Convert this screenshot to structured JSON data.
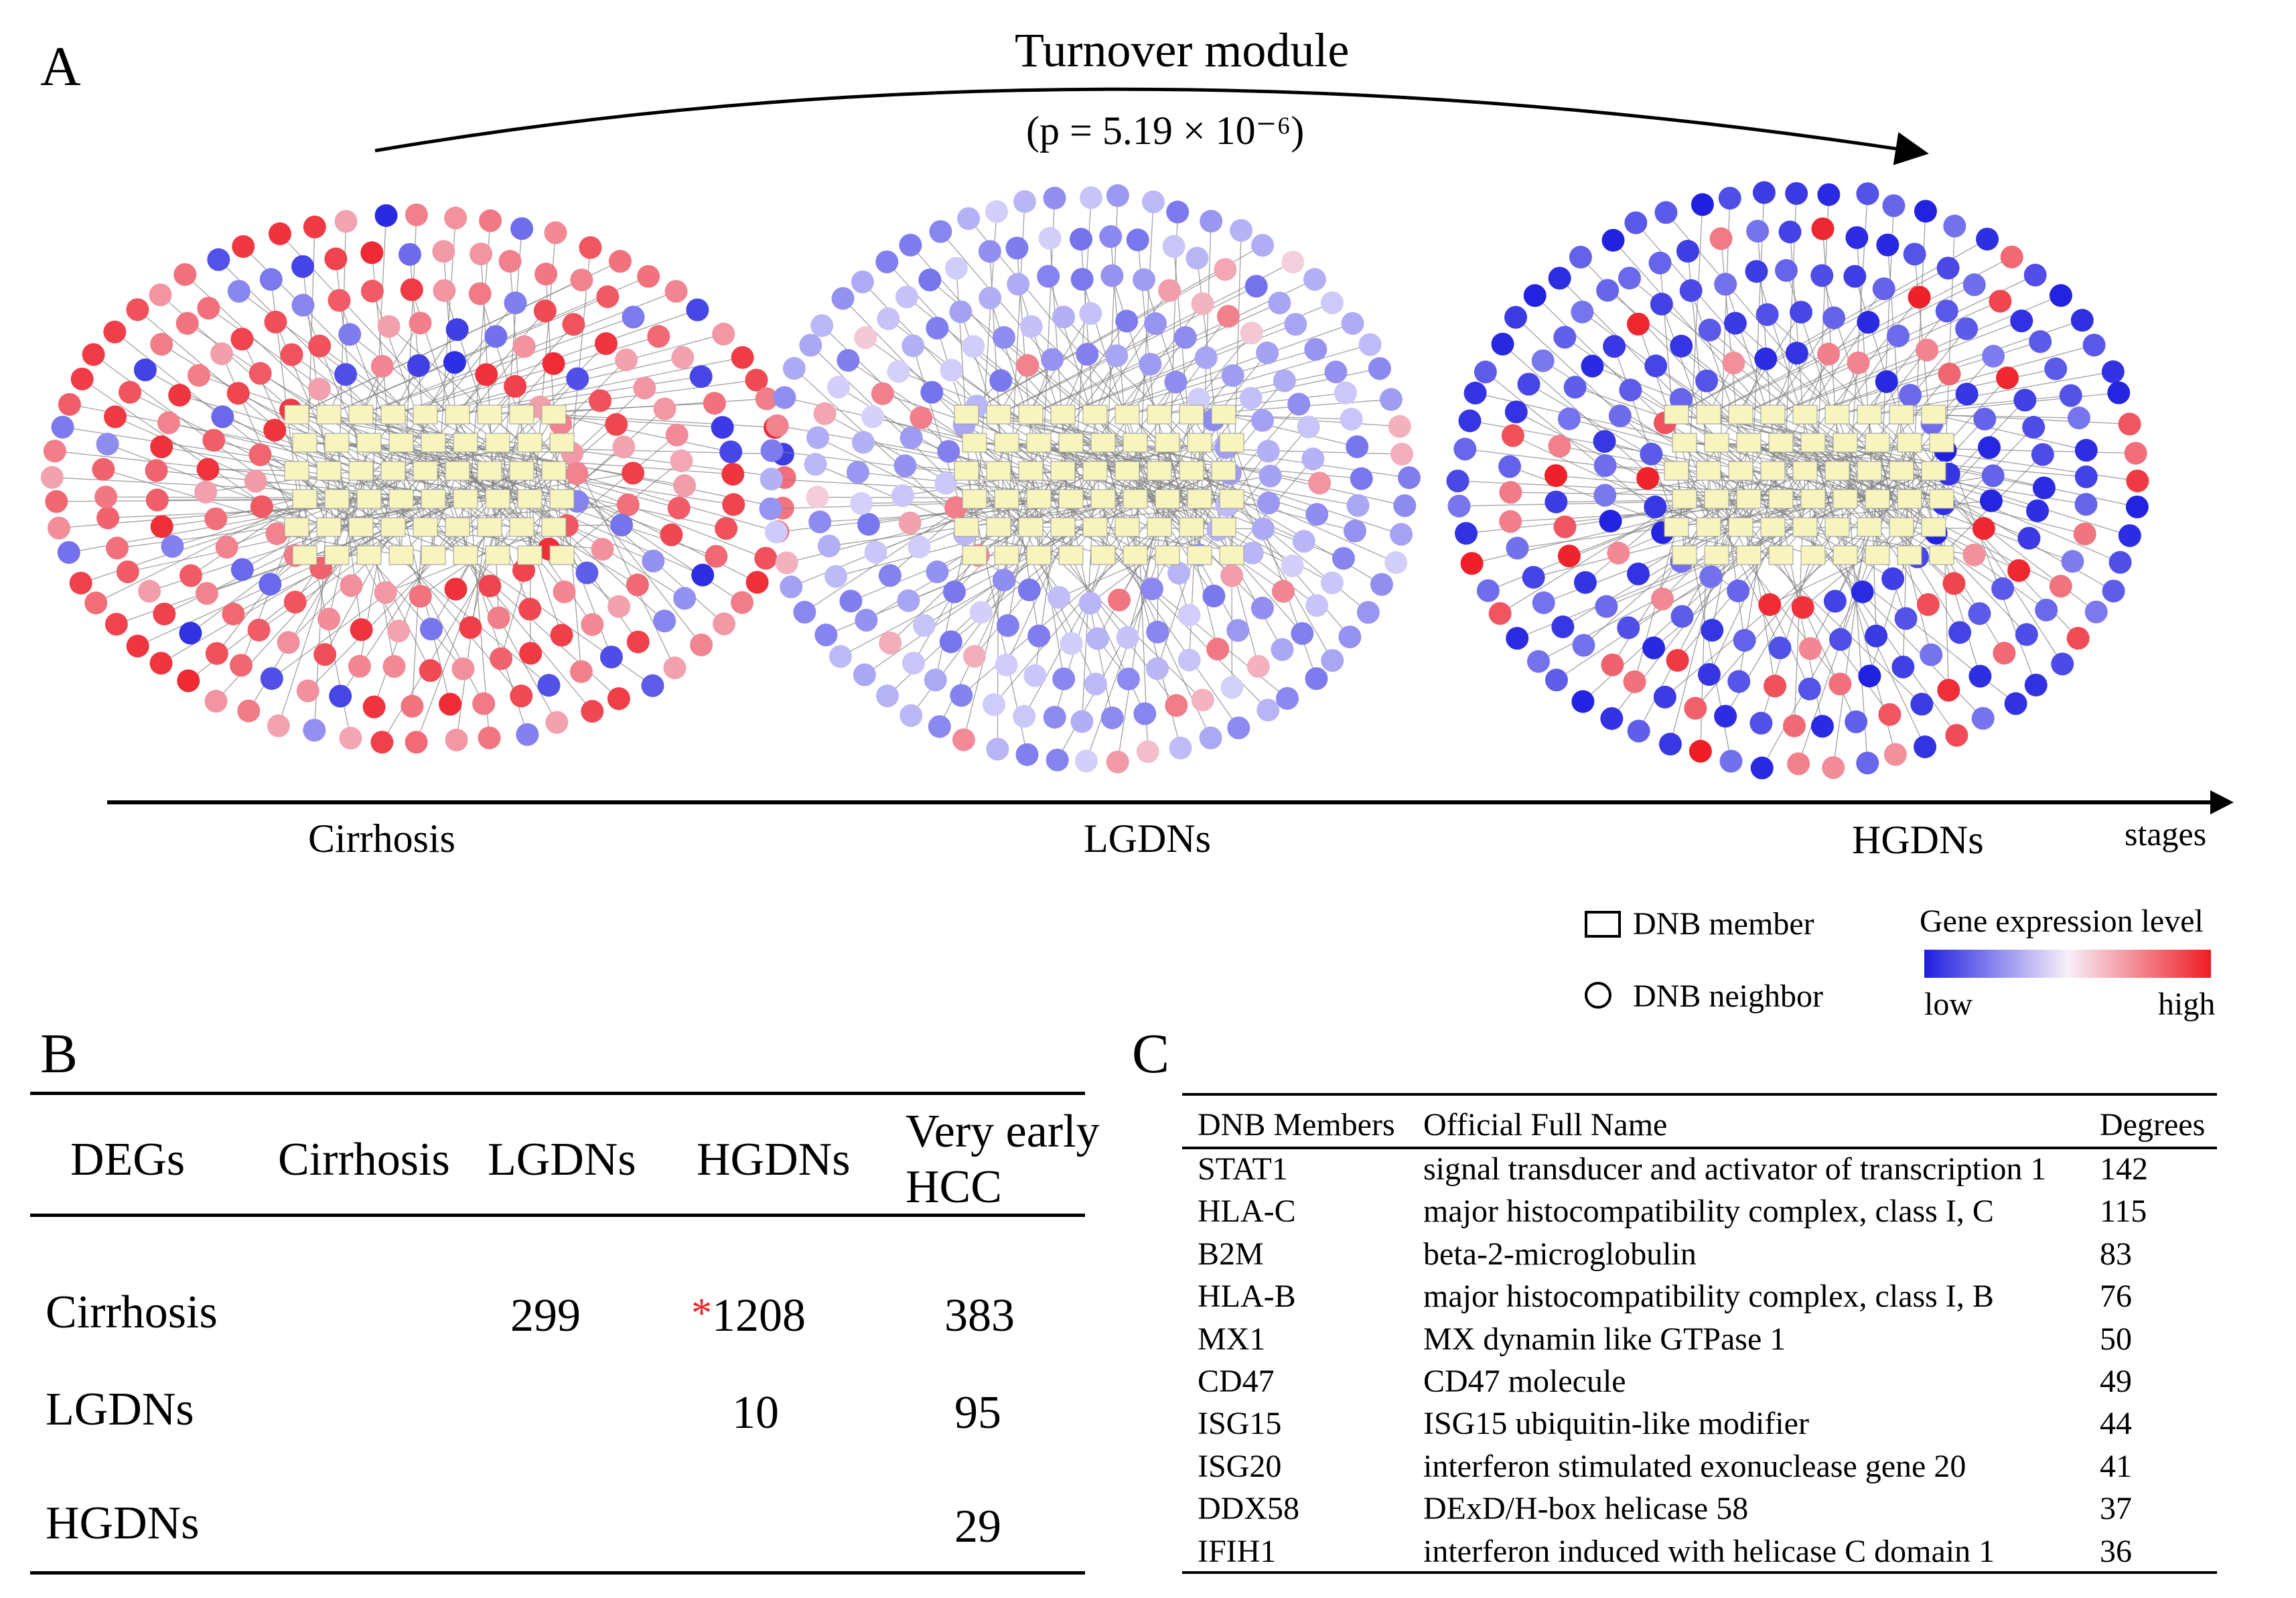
{
  "panel_a": {
    "label": "A",
    "title": "Turnover module",
    "pvalue": "(p = 5.19 × 10⁻⁶)",
    "stages": [
      "Cirrhosis",
      "LGDNs",
      "HGDNs"
    ],
    "axis_label": "stages",
    "network_color_mode": [
      "mostly-high",
      "mostly-low-light",
      "mostly-low-strong"
    ],
    "colors": {
      "low": "#1f1fe0",
      "mid": "#f5f0ff",
      "high": "#ee1c25",
      "node_box": "#f7f4bd",
      "edge": "#808080"
    },
    "legend": {
      "member_label": "DNB member",
      "neighbor_label": "DNB neighbor",
      "scale_title": "Gene expression level",
      "low_label": "low",
      "high_label": "high"
    }
  },
  "panel_b": {
    "label": "B",
    "header": [
      "DEGs",
      "Cirrhosis",
      "LGDNs",
      "HGDNs",
      "Very early",
      "HCC"
    ],
    "rows": [
      {
        "name": "Cirrhosis",
        "cells": [
          "",
          "299",
          "1208",
          "383"
        ],
        "star_on_hgdns": "*"
      },
      {
        "name": "LGDNs",
        "cells": [
          "",
          "",
          "10",
          "95"
        ]
      },
      {
        "name": "HGDNs",
        "cells": [
          "",
          "",
          "",
          "29"
        ]
      }
    ]
  },
  "panel_c": {
    "label": "C",
    "columns": [
      "DNB Members",
      "Official Full Name",
      "Degrees"
    ],
    "rows": [
      {
        "member": "STAT1",
        "name": "signal transducer and activator of transcription 1",
        "degree": "142"
      },
      {
        "member": "HLA-C",
        "name": "major histocompatibility complex, class I, C",
        "degree": "115"
      },
      {
        "member": "B2M",
        "name": "beta-2-microglobulin",
        "degree": "83"
      },
      {
        "member": "HLA-B",
        "name": "major histocompatibility complex, class I, B",
        "degree": "76"
      },
      {
        "member": "MX1",
        "name": "MX dynamin like GTPase 1",
        "degree": "50"
      },
      {
        "member": "CD47",
        "name": "CD47 molecule",
        "degree": "49"
      },
      {
        "member": "ISG15",
        "name": "ISG15 ubiquitin-like modifier",
        "degree": "44"
      },
      {
        "member": "ISG20",
        "name": "interferon stimulated exonuclease gene 20",
        "degree": "41"
      },
      {
        "member": "DDX58",
        "name": "DExD/H-box helicase 58",
        "degree": "37"
      },
      {
        "member": "IFIH1",
        "name": "interferon induced with helicase C domain 1",
        "degree": "36"
      }
    ]
  }
}
